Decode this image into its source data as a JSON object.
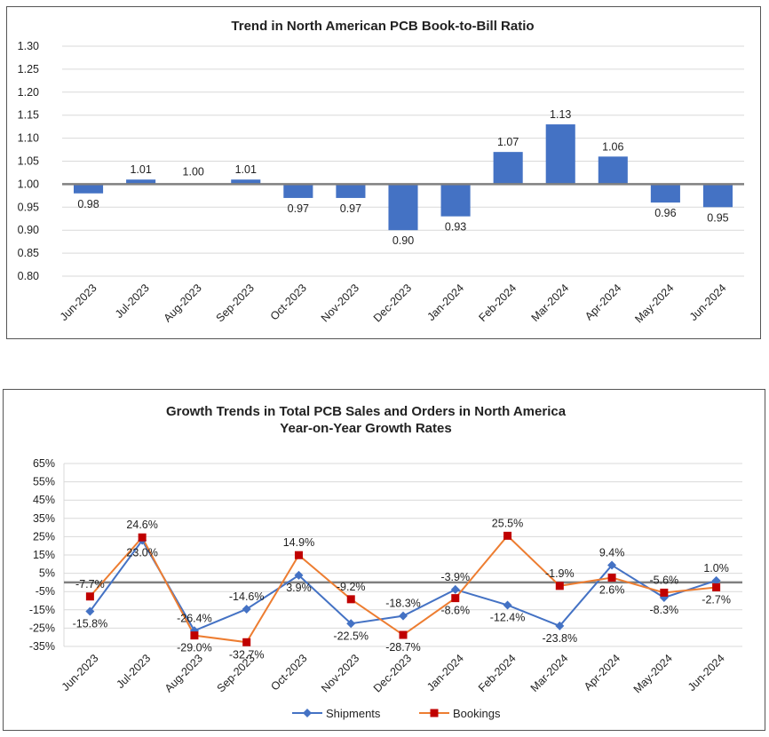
{
  "chart_data": [
    {
      "type": "bar",
      "title": "Trend in North American PCB Book-to-Bill Ratio",
      "categories": [
        "Jun-2023",
        "Jul-2023",
        "Aug-2023",
        "Sep-2023",
        "Oct-2023",
        "Nov-2023",
        "Dec-2023",
        "Jan-2024",
        "Feb-2024",
        "Mar-2024",
        "Apr-2024",
        "May-2024",
        "Jun-2024"
      ],
      "values": [
        0.98,
        1.01,
        1.0,
        1.01,
        0.97,
        0.97,
        0.9,
        0.93,
        1.07,
        1.13,
        1.06,
        0.96,
        0.95
      ],
      "value_labels": [
        "0.98",
        "1.01",
        "1.00",
        "1.01",
        "0.97",
        "0.97",
        "0.90",
        "0.93",
        "1.07",
        "1.13",
        "1.06",
        "0.96",
        "0.95"
      ],
      "baseline": 1.0,
      "ylim": [
        0.8,
        1.3
      ],
      "yticks": [
        "1.30",
        "1.25",
        "1.20",
        "1.15",
        "1.10",
        "1.05",
        "1.00",
        "0.95",
        "0.90",
        "0.85",
        "0.80"
      ],
      "grid": true,
      "colors": {
        "bar": "#4472C4",
        "baseline": "#808080"
      }
    },
    {
      "type": "line",
      "title": "Growth Trends in Total PCB Sales and Orders in North America",
      "subtitle": "Year-on-Year Growth Rates",
      "categories": [
        "Jun-2023",
        "Jul-2023",
        "Aug-2023",
        "Sep-2023",
        "Oct-2023",
        "Nov-2023",
        "Dec-2023",
        "Jan-2024",
        "Feb-2024",
        "Mar-2024",
        "Apr-2024",
        "May-2024",
        "Jun-2024"
      ],
      "series": [
        {
          "name": "Shipments",
          "values": [
            -15.8,
            23.0,
            -26.4,
            -14.6,
            3.9,
            -22.5,
            -18.3,
            -3.9,
            -12.4,
            -23.8,
            9.4,
            -8.3,
            1.0
          ],
          "labels": [
            "-15.8%",
            "23.0%",
            "-26.4%",
            "-14.6%",
            "3.9%",
            "-22.5%",
            "-18.3%",
            "-3.9%",
            "-12.4%",
            "-23.8%",
            "9.4%",
            "-8.3%",
            "1.0%"
          ],
          "color": "#4472C4",
          "marker": "diamond"
        },
        {
          "name": "Bookings",
          "values": [
            -7.7,
            24.6,
            -29.0,
            -32.7,
            14.9,
            -9.2,
            -28.7,
            -8.6,
            25.5,
            -1.9,
            2.6,
            -5.6,
            -2.7
          ],
          "labels": [
            "-7.7%",
            "24.6%",
            "-29.0%",
            "-32.7%",
            "14.9%",
            "-9.2%",
            "-28.7%",
            "-8.6%",
            "25.5%",
            "-1.9%",
            "2.6%",
            "-5.6%",
            "-2.7%"
          ],
          "color": "#ED7D31",
          "marker_color": "#C00000",
          "marker": "square"
        }
      ],
      "ylim": [
        -35,
        65
      ],
      "yticks": [
        "65%",
        "55%",
        "45%",
        "35%",
        "25%",
        "15%",
        "5%",
        "-5%",
        "-15%",
        "-25%",
        "-35%"
      ],
      "zero_line_color": "#808080",
      "grid": true,
      "legend": "bottom"
    }
  ]
}
